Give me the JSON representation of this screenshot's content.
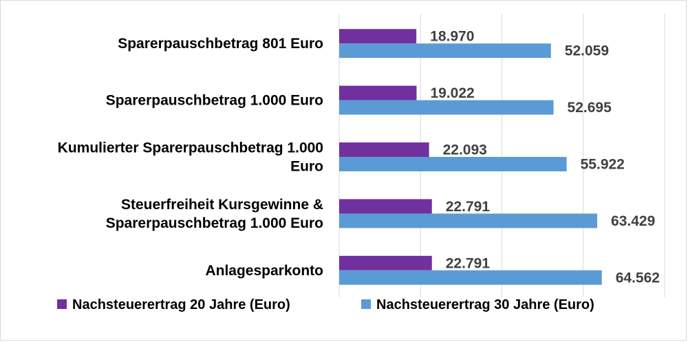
{
  "chart_data": {
    "type": "bar",
    "orientation": "horizontal",
    "categories": [
      [
        "Sparerpauschbetrag 801 Euro"
      ],
      [
        "Sparerpauschbetrag 1.000 Euro"
      ],
      [
        "Kumulierter Sparerpauschbetrag 1.000",
        "Euro"
      ],
      [
        "Steuerfreiheit Kursgewinne &",
        "Sparerpauschbetrag 1.000 Euro"
      ],
      [
        "Anlagesparkonto"
      ]
    ],
    "series": [
      {
        "name": "Nachsteuerertrag 20 Jahre (Euro)",
        "color": "#7030a0",
        "values": [
          18970,
          19022,
          22093,
          22791,
          22791
        ],
        "labels": [
          "18.970",
          "19.022",
          "22.093",
          "22.791",
          "22.791"
        ]
      },
      {
        "name": "Nachsteuerertrag 30 Jahre (Euro)",
        "color": "#5b9bd5",
        "values": [
          52059,
          52695,
          55922,
          63429,
          64562
        ],
        "labels": [
          "52.059",
          "52.695",
          "55.922",
          "63.429",
          "64.562"
        ]
      }
    ],
    "xlim": [
      0,
      80000
    ],
    "grid": true,
    "legend_position": "bottom"
  }
}
